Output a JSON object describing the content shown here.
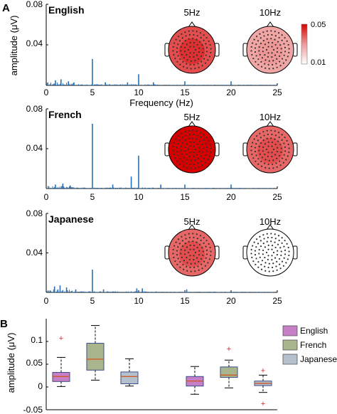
{
  "panel_labels": {
    "a": "A",
    "b": "B"
  },
  "topomap_scale": {
    "max_label": "0.05",
    "min_label": "0.01",
    "colors": [
      "#ffffff",
      "#f3c7c7",
      "#e87a7a",
      "#d70000"
    ]
  },
  "chart_data": [
    {
      "type": "line",
      "title": "English",
      "ylabel": "amplitude (μV)",
      "xlabel": "Frequency (Hz)",
      "xlim": [
        0,
        25
      ],
      "ylim": [
        0,
        0.08
      ],
      "xticks": [
        "0",
        "5",
        "10",
        "15",
        "20",
        "25"
      ],
      "yticks": [
        "0.04",
        "0.08"
      ],
      "color": "#2a6fb5",
      "peaks": [
        {
          "x": 1.0,
          "y": 0.005
        },
        {
          "x": 1.6,
          "y": 0.006
        },
        {
          "x": 2.4,
          "y": 0.004
        },
        {
          "x": 3.0,
          "y": 0.003
        },
        {
          "x": 5.0,
          "y": 0.026
        },
        {
          "x": 6.4,
          "y": 0.003
        },
        {
          "x": 8.8,
          "y": 0.003
        },
        {
          "x": 10.0,
          "y": 0.011
        },
        {
          "x": 11.6,
          "y": 0.003
        },
        {
          "x": 15.0,
          "y": 0.004
        },
        {
          "x": 20.0,
          "y": 0.004
        }
      ],
      "topomaps": [
        {
          "label": "5Hz",
          "level": 0.7
        },
        {
          "label": "10Hz",
          "level": 0.35
        }
      ]
    },
    {
      "type": "line",
      "title": "French",
      "ylabel": "",
      "xlabel": "",
      "xlim": [
        0,
        25
      ],
      "ylim": [
        0,
        0.08
      ],
      "xticks": [
        "0",
        "5",
        "10",
        "15",
        "20",
        "25"
      ],
      "yticks": [
        "0.04",
        "0.08"
      ],
      "color": "#2a6fb5",
      "peaks": [
        {
          "x": 1.0,
          "y": 0.004
        },
        {
          "x": 1.8,
          "y": 0.005
        },
        {
          "x": 2.6,
          "y": 0.003
        },
        {
          "x": 5.0,
          "y": 0.065
        },
        {
          "x": 7.2,
          "y": 0.004
        },
        {
          "x": 9.2,
          "y": 0.012
        },
        {
          "x": 10.0,
          "y": 0.033
        },
        {
          "x": 12.4,
          "y": 0.004
        },
        {
          "x": 15.0,
          "y": 0.004
        },
        {
          "x": 20.0,
          "y": 0.004
        }
      ],
      "topomaps": [
        {
          "label": "5Hz",
          "level": 1.0
        },
        {
          "label": "10Hz",
          "level": 0.6
        }
      ]
    },
    {
      "type": "line",
      "title": "Japanese",
      "ylabel": "",
      "xlabel": "",
      "xlim": [
        0,
        25
      ],
      "ylim": [
        0,
        0.08
      ],
      "xticks": [
        "0",
        "5",
        "10",
        "15",
        "20",
        "25"
      ],
      "yticks": [
        "0.04",
        "0.08"
      ],
      "color": "#2a6fb5",
      "peaks": [
        {
          "x": 0.9,
          "y": 0.006
        },
        {
          "x": 1.5,
          "y": 0.007
        },
        {
          "x": 2.2,
          "y": 0.005
        },
        {
          "x": 3.2,
          "y": 0.003
        },
        {
          "x": 5.0,
          "y": 0.023
        },
        {
          "x": 6.2,
          "y": 0.003
        },
        {
          "x": 9.8,
          "y": 0.004
        },
        {
          "x": 10.4,
          "y": 0.004
        },
        {
          "x": 15.2,
          "y": 0.003
        }
      ],
      "topomaps": [
        {
          "label": "5Hz",
          "level": 0.6
        },
        {
          "label": "10Hz",
          "level": 0.0
        }
      ]
    },
    {
      "type": "box",
      "ylabel": "amplitude (μV)",
      "ylim": [
        -0.05,
        0.15
      ],
      "yticks": [
        "-0.05",
        "0",
        "0.05",
        "0.1"
      ],
      "legend_position": "right",
      "series": [
        {
          "name": "English",
          "color": "#c77fc7"
        },
        {
          "name": "French",
          "color": "#a9b58c"
        },
        {
          "name": "Japanese",
          "color": "#b4c0cc"
        }
      ],
      "boxes": [
        {
          "group": 1,
          "series": "English",
          "min": 0.001,
          "q1": 0.012,
          "median": 0.023,
          "q3": 0.032,
          "max": 0.065,
          "outliers": [
            0.108
          ]
        },
        {
          "group": 1,
          "series": "French",
          "min": 0.015,
          "q1": 0.037,
          "median": 0.061,
          "q3": 0.096,
          "max": 0.135,
          "outliers": []
        },
        {
          "group": 1,
          "series": "Japanese",
          "min": 0.002,
          "q1": 0.007,
          "median": 0.023,
          "q3": 0.033,
          "max": 0.062,
          "outliers": []
        },
        {
          "group": 2,
          "series": "English",
          "min": -0.016,
          "q1": 0.002,
          "median": 0.013,
          "q3": 0.023,
          "max": 0.045,
          "outliers": []
        },
        {
          "group": 2,
          "series": "French",
          "min": -0.002,
          "q1": 0.021,
          "median": 0.026,
          "q3": 0.044,
          "max": 0.059,
          "outliers": [
            0.084
          ]
        },
        {
          "group": 2,
          "series": "Japanese",
          "min": -0.012,
          "q1": 0.003,
          "median": 0.008,
          "q3": 0.013,
          "max": 0.026,
          "outliers": [
            0.037,
            -0.036
          ]
        }
      ]
    }
  ]
}
